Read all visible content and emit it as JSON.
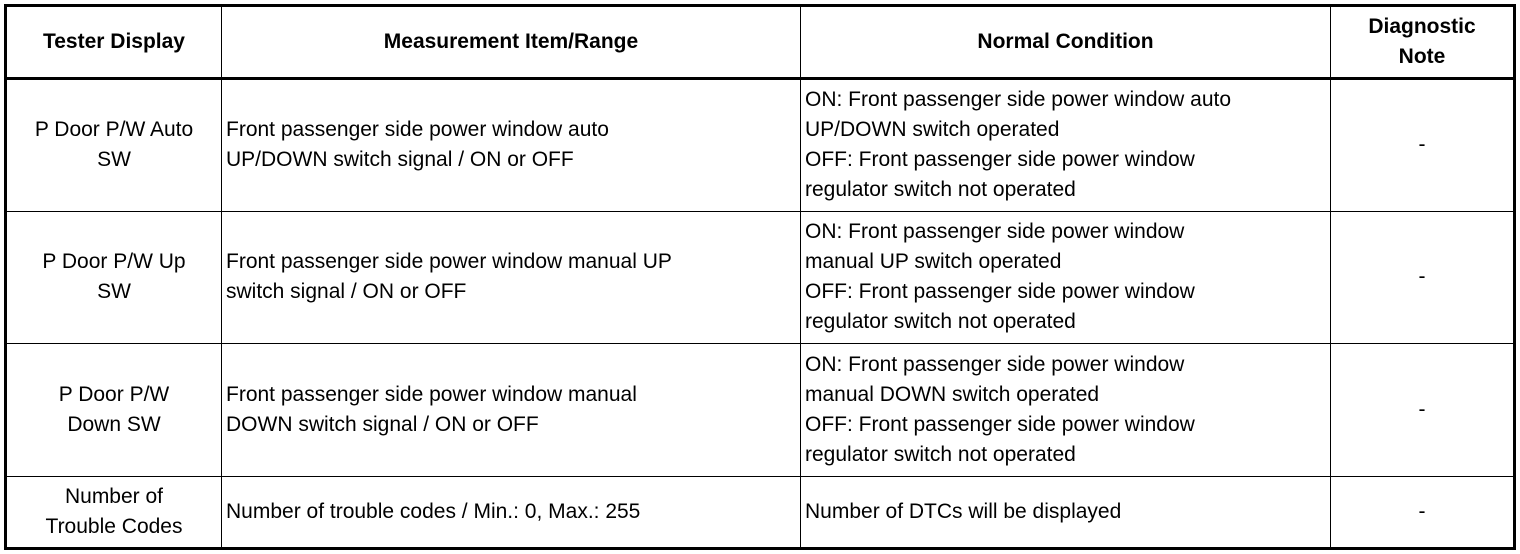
{
  "headers": [
    "Tester Display",
    "Measurement Item/Range",
    "Normal Condition",
    "Diagnostic Note"
  ],
  "rows": [
    {
      "display": [
        "P Door P/W Auto",
        "SW"
      ],
      "measurement": [
        "Front passenger side power window auto",
        "UP/DOWN switch signal / ON or OFF"
      ],
      "condition": [
        "ON: Front passenger side power window auto",
        "UP/DOWN switch operated",
        "OFF: Front passenger side power window",
        "regulator switch not operated"
      ],
      "note": "-"
    },
    {
      "display": [
        "P Door P/W Up",
        "SW"
      ],
      "measurement": [
        "Front passenger side power window manual UP",
        "switch signal / ON or OFF"
      ],
      "condition": [
        "ON: Front passenger side power window",
        "manual UP switch operated",
        "OFF: Front passenger side power window",
        "regulator switch not operated"
      ],
      "note": "-"
    },
    {
      "display": [
        "P Door P/W",
        "Down SW"
      ],
      "measurement": [
        "Front passenger side power window manual",
        "DOWN switch signal / ON or OFF"
      ],
      "condition": [
        "ON: Front passenger side power window",
        "manual DOWN switch operated",
        "OFF: Front passenger side power window",
        "regulator switch not operated"
      ],
      "note": "-"
    },
    {
      "display": [
        "Number of",
        "Trouble Codes"
      ],
      "measurement": [
        "Number of trouble codes / Min.: 0, Max.: 255"
      ],
      "condition": [
        "Number of DTCs will be displayed"
      ],
      "note": "-"
    }
  ]
}
